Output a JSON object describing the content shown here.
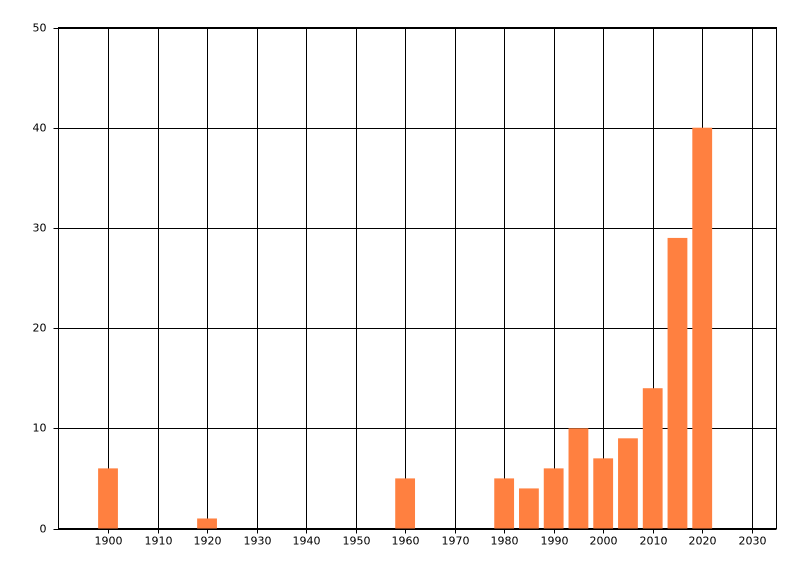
{
  "chart_data": {
    "type": "bar",
    "x": [
      1900,
      1920,
      1960,
      1980,
      1985,
      1990,
      1995,
      2000,
      2005,
      2010,
      2015,
      2020
    ],
    "values": [
      6,
      1,
      5,
      5,
      4,
      6,
      10,
      7,
      9,
      14,
      29,
      40
    ],
    "color": "#ff8040",
    "xlim": [
      1890,
      2035
    ],
    "xticks": [
      1900,
      1910,
      1920,
      1930,
      1940,
      1950,
      1960,
      1970,
      1980,
      1990,
      2000,
      2010,
      2020,
      2030
    ],
    "ylim": [
      0,
      50
    ],
    "yticks": [
      0,
      10,
      20,
      30,
      40,
      50
    ],
    "grid": true
  }
}
